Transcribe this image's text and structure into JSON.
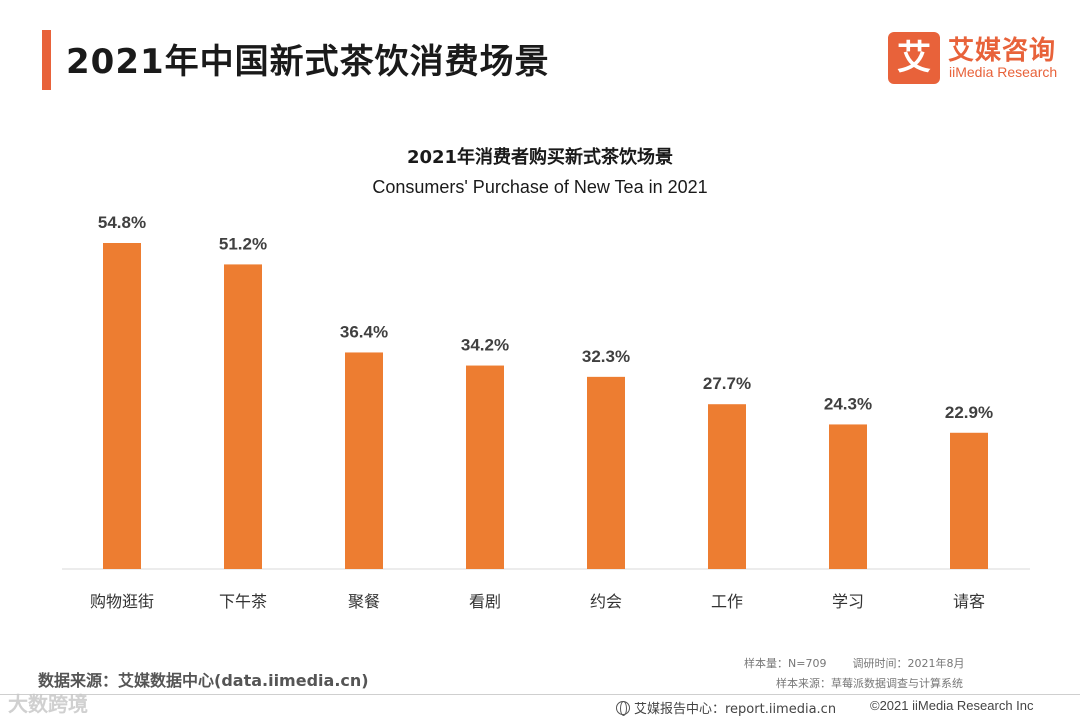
{
  "header": {
    "title": "2021年中国新式茶饮消费场景"
  },
  "brand": {
    "mark": "艾",
    "name_cn": "艾媒咨询",
    "name_en": "iiMedia Research",
    "color": "#e8623a"
  },
  "chart_data": {
    "type": "bar",
    "title": "2021年消费者购买新式茶饮场景",
    "subtitle": "Consumers' Purchase of New Tea in 2021",
    "categories": [
      "购物逛街",
      "下午茶",
      "聚餐",
      "看剧",
      "约会",
      "工作",
      "学习",
      "请客"
    ],
    "values": [
      54.8,
      51.2,
      36.4,
      34.2,
      32.3,
      27.7,
      24.3,
      22.9
    ],
    "value_labels": [
      "54.8%",
      "51.2%",
      "36.4%",
      "34.2%",
      "32.3%",
      "27.7%",
      "24.3%",
      "22.9%"
    ],
    "unit": "%",
    "ylim": [
      0,
      54.8
    ],
    "grid": false,
    "bar_color": "#ed7d31"
  },
  "footer": {
    "source": "数据来源：艾媒数据中心(data.iimedia.cn)",
    "sample_size": "样本量：N=709",
    "survey_time": "调研时间：2021年8月",
    "sample_source": "样本来源：草莓派数据调查与计算系统",
    "report_center": "艾媒报告中心：report.iimedia.cn",
    "copyright": "©2021  iiMedia Research  Inc",
    "watermark": "大数跨境"
  }
}
